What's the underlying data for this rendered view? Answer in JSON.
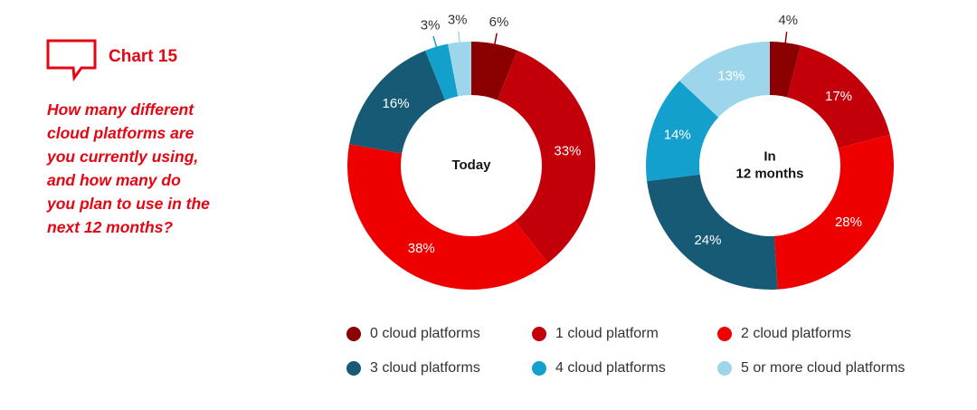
{
  "header": {
    "chart_label": "Chart 15",
    "question_lines": [
      "How many different",
      "cloud platforms are",
      "you currently using,",
      "and how many do",
      "you plan to use in the",
      "next 12 months?"
    ]
  },
  "colors": {
    "brand_red": "#e30613",
    "series": [
      "#8b0000",
      "#c3000a",
      "#ee0000",
      "#175a75",
      "#14a0cc",
      "#9dd6ea"
    ]
  },
  "chart_data": [
    {
      "type": "pie",
      "subtype": "donut",
      "center_label": [
        "Today"
      ],
      "categories": [
        "0 cloud platforms",
        "1 cloud platform",
        "2 cloud platforms",
        "3 cloud platforms",
        "4 cloud platforms",
        "5 or more cloud platforms"
      ],
      "values": [
        6,
        33,
        38,
        16,
        3,
        3
      ],
      "labels": [
        "6%",
        "33%",
        "38%",
        "16%",
        "3%",
        "3%"
      ]
    },
    {
      "type": "pie",
      "subtype": "donut",
      "center_label": [
        "In",
        "12 months"
      ],
      "categories": [
        "0 cloud platforms",
        "1 cloud platform",
        "2 cloud platforms",
        "3 cloud platforms",
        "4 cloud platforms",
        "5 or more cloud platforms"
      ],
      "values": [
        4,
        17,
        28,
        24,
        14,
        13
      ],
      "labels": [
        "4%",
        "17%",
        "28%",
        "24%",
        "14%",
        "13%"
      ]
    }
  ],
  "legend": [
    {
      "label": "0 cloud platforms",
      "color": "#8b0000"
    },
    {
      "label": "1 cloud platform",
      "color": "#c3000a"
    },
    {
      "label": "2 cloud platforms",
      "color": "#ee0000"
    },
    {
      "label": "3 cloud platforms",
      "color": "#175a75"
    },
    {
      "label": "4 cloud platforms",
      "color": "#14a0cc"
    },
    {
      "label": "5 or more cloud platforms",
      "color": "#9dd6ea"
    }
  ]
}
